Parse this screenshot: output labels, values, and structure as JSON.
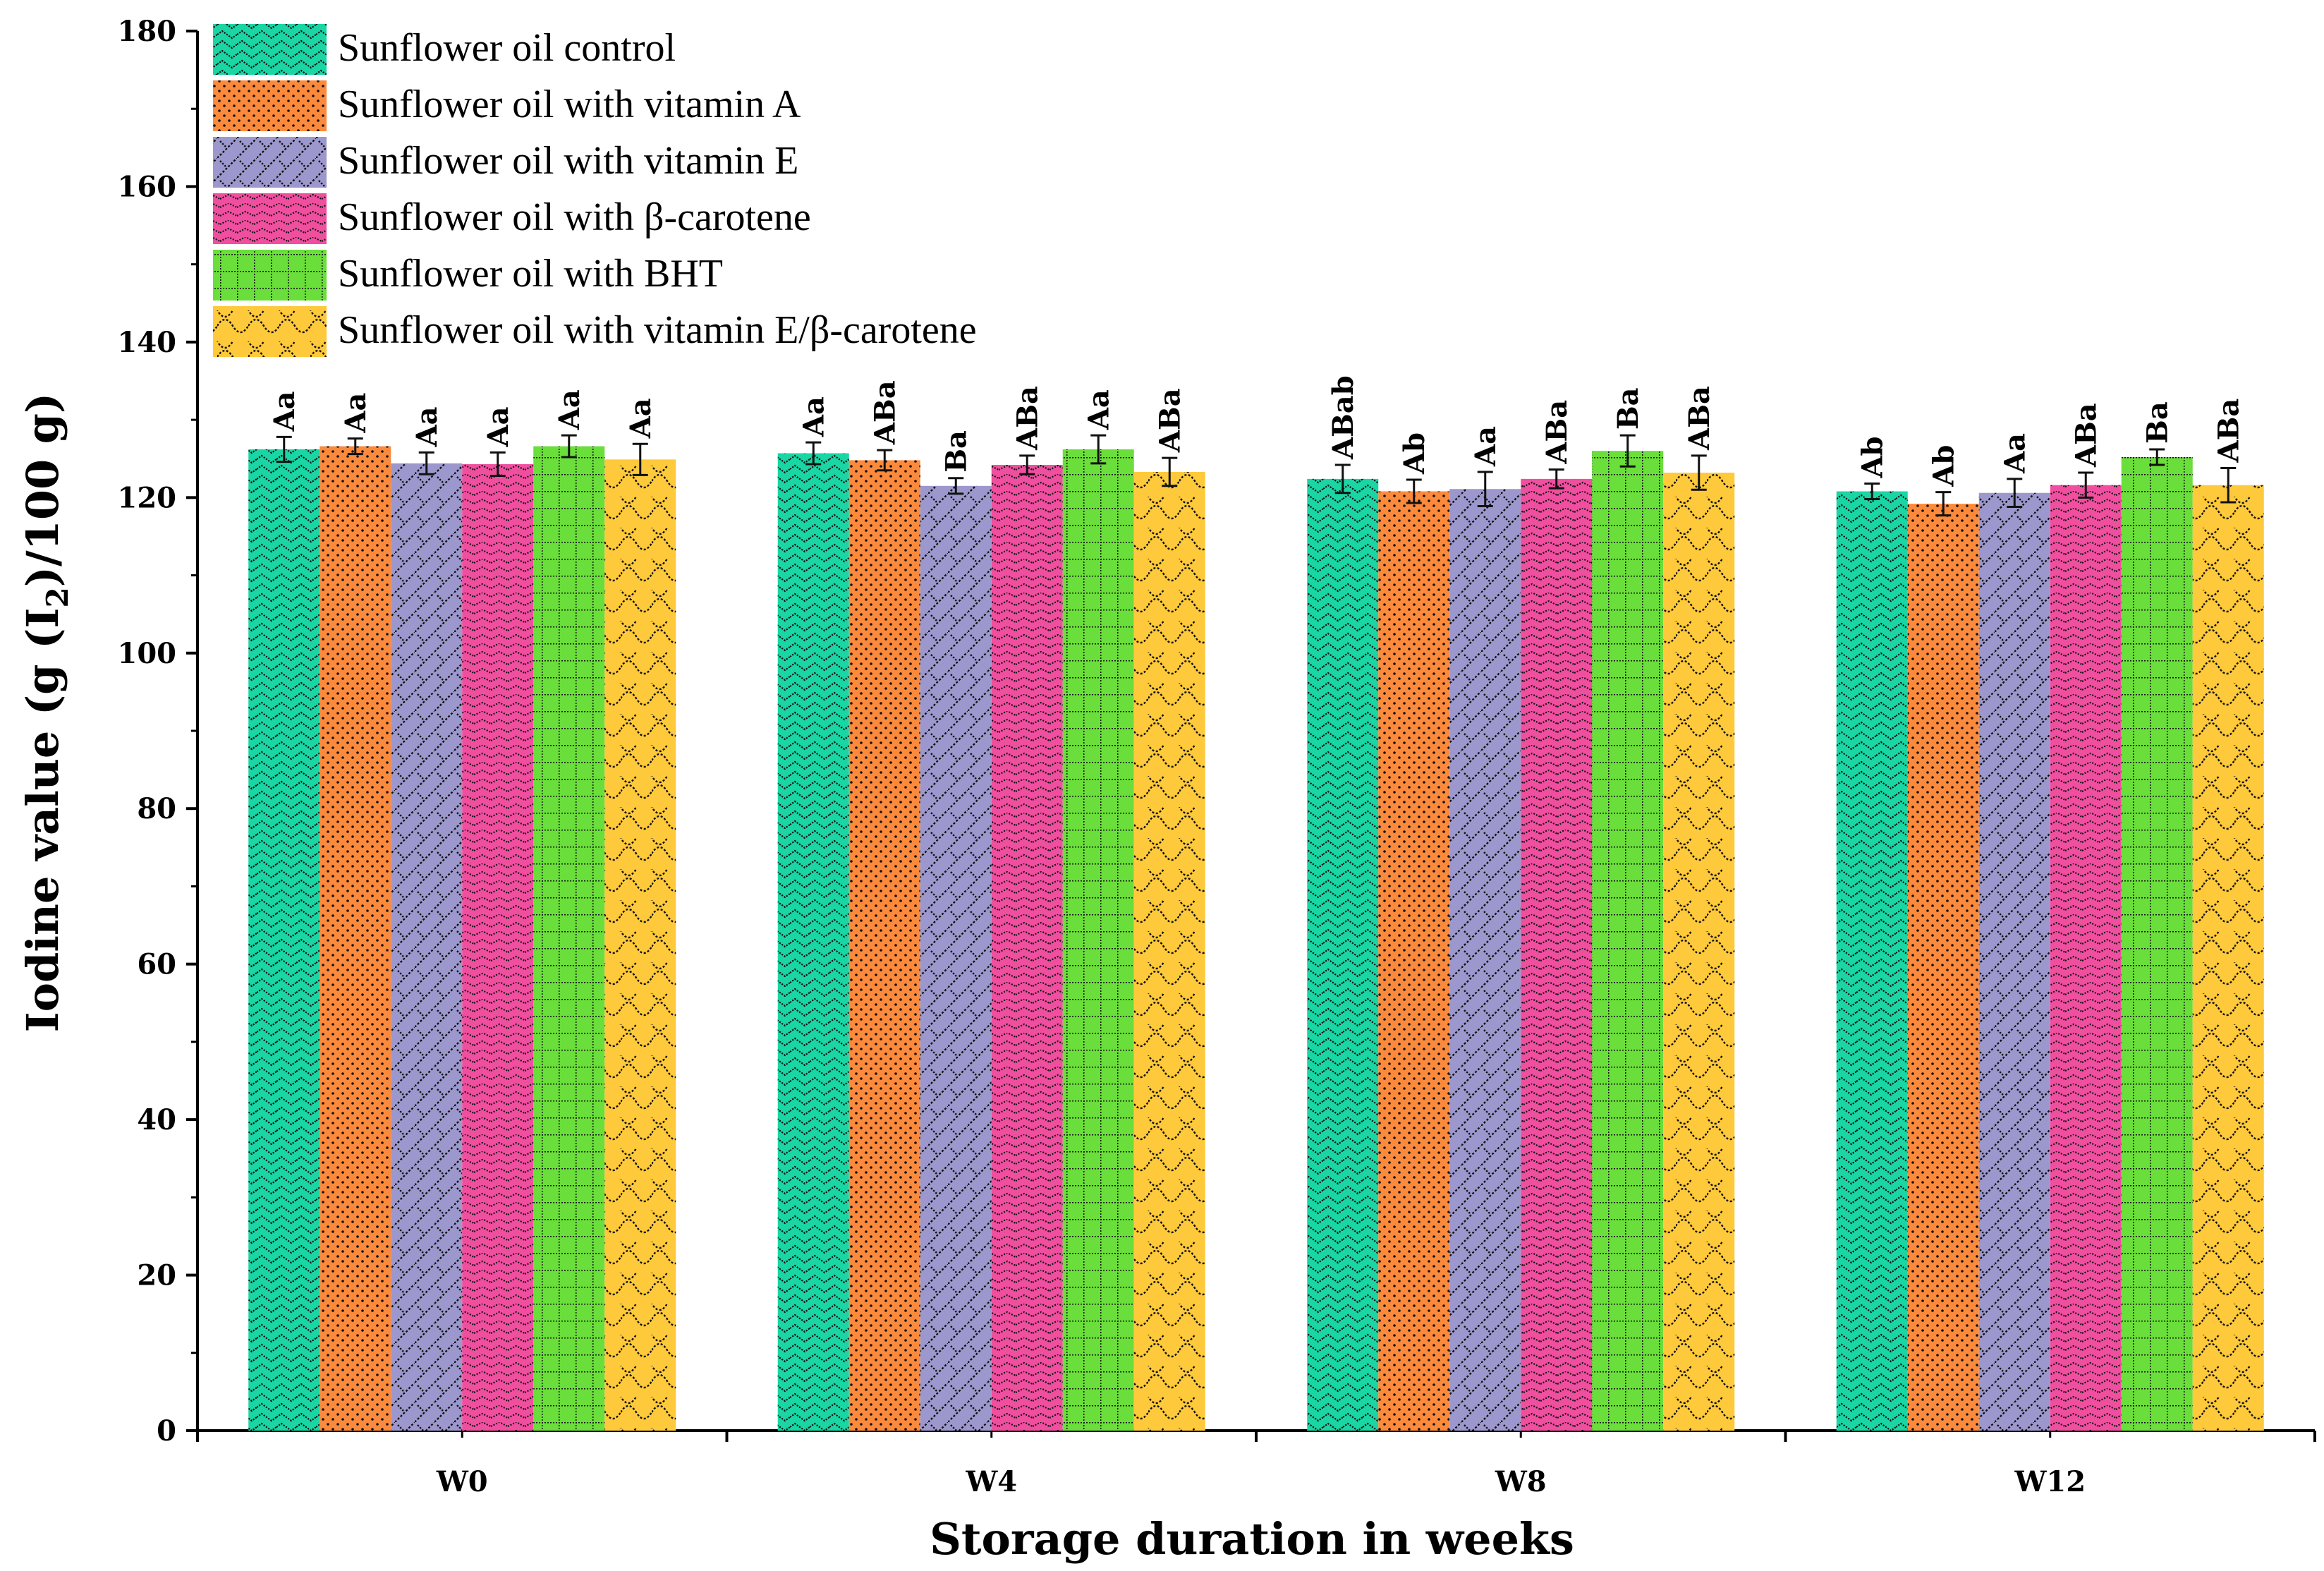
{
  "chart_data": {
    "type": "bar",
    "xlabel": "Storage duration in weeks",
    "ylabel": "Iodine value (g (I2)/100 g)",
    "ylabel_parts": [
      "Iodine value (g (I",
      "2",
      ")/100 g)"
    ],
    "ylim": [
      0,
      180
    ],
    "yticks": [
      0,
      20,
      40,
      60,
      80,
      100,
      120,
      140,
      160,
      180
    ],
    "grid": false,
    "legend_position": "top-left",
    "categories": [
      "W0",
      "W4",
      "W8",
      "W12"
    ],
    "series": [
      {
        "name": "Sunflower oil control",
        "color": "#1ad6a4",
        "pattern": "wave",
        "values": [
          126.2,
          125.7,
          122.4,
          120.8
        ],
        "errors": [
          1.6,
          1.4,
          1.8,
          1.0
        ],
        "labels": [
          "Aa",
          "Aa",
          "ABab",
          "Ab"
        ]
      },
      {
        "name": "Sunflower oil with vitamin A",
        "color": "#fc8a3c",
        "pattern": "dots",
        "values": [
          126.6,
          124.8,
          120.8,
          119.2
        ],
        "errors": [
          1.0,
          1.3,
          1.5,
          1.5
        ],
        "labels": [
          "Aa",
          "ABa",
          "Ab",
          "Ab"
        ]
      },
      {
        "name": "Sunflower oil with vitamin E",
        "color": "#9c98cd",
        "pattern": "diag",
        "values": [
          124.4,
          121.5,
          121.1,
          120.6
        ],
        "errors": [
          1.4,
          1.0,
          2.2,
          1.8
        ],
        "labels": [
          "Aa",
          "Ba",
          "Aa",
          "Aa"
        ]
      },
      {
        "name": "Sunflower oil with β-carotene",
        "color": "#f04fa0",
        "pattern": "herring",
        "values": [
          124.3,
          124.2,
          122.4,
          121.6
        ],
        "errors": [
          1.5,
          1.2,
          1.2,
          1.6
        ],
        "labels": [
          "Aa",
          "ABa",
          "ABa",
          "ABa"
        ]
      },
      {
        "name": "Sunflower oil with BHT",
        "color": "#6ade3a",
        "pattern": "grid",
        "values": [
          126.6,
          126.2,
          126.0,
          125.2
        ],
        "errors": [
          1.4,
          1.8,
          2.0,
          1.0
        ],
        "labels": [
          "Aa",
          "Aa",
          "Ba",
          "Ba"
        ]
      },
      {
        "name": "Sunflower oil with vitamin E/β-carotene",
        "color": "#fec93a",
        "pattern": "scallop",
        "values": [
          124.9,
          123.3,
          123.2,
          121.6
        ],
        "errors": [
          2.0,
          1.8,
          2.2,
          2.2
        ],
        "labels": [
          "Aa",
          "ABa",
          "ABa",
          "ABa"
        ]
      }
    ]
  }
}
